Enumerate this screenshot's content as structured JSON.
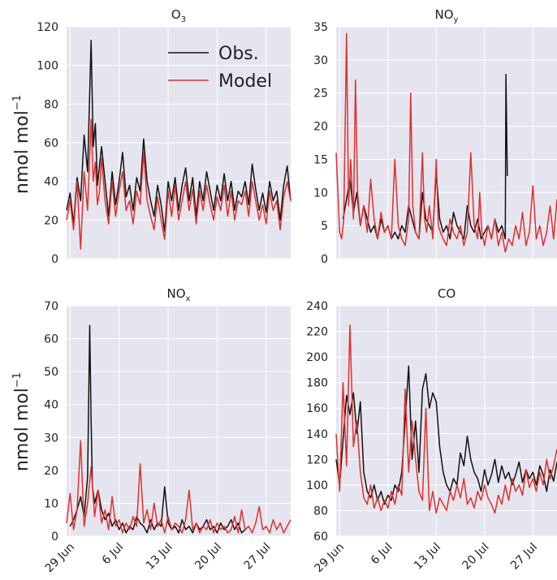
{
  "figure": {
    "ylabel": "nmol mol",
    "ylabel_exponent": "−1",
    "background": "#e5e5f0",
    "grid_color": "#ffffff",
    "obs_color": "#111111",
    "model_color": "#e0302a",
    "x_ticks": [
      {
        "day": 0,
        "label": "29 Jun"
      },
      {
        "day": 7,
        "label": "6 Jul"
      },
      {
        "day": 14,
        "label": "13 Jul"
      },
      {
        "day": 21,
        "label": "20 Jul"
      },
      {
        "day": 28,
        "label": "27 Jul"
      }
    ],
    "legend": {
      "obs": "Obs.",
      "model": "Model"
    }
  },
  "chart_data": [
    {
      "type": "line",
      "title": "O",
      "title_sub": "3",
      "xlim": [
        -0.5,
        31.5
      ],
      "ylim": [
        0,
        120
      ],
      "y_ticks": [
        0,
        20,
        40,
        60,
        80,
        100,
        120
      ],
      "show_legend": true,
      "series": [
        {
          "name": "Obs.",
          "x": [
            -0.5,
            0,
            0.5,
            1,
            1.5,
            2,
            2.5,
            3,
            3.3,
            3.6,
            3.9,
            4.2,
            4.5,
            5,
            5.5,
            6,
            6.5,
            7,
            7.5,
            8,
            8.5,
            9,
            9.5,
            10,
            10.5,
            11,
            11.5,
            12,
            12.5,
            13,
            13.5,
            14,
            14.5,
            15,
            15.5,
            16,
            16.5,
            17,
            17.5,
            18,
            18.5,
            19,
            19.5,
            20,
            20.5,
            21,
            21.5,
            22,
            22.5,
            23,
            23.5,
            24,
            24.5,
            25,
            25.5,
            26,
            26.5,
            27,
            27.5,
            28,
            28.5,
            29,
            29.5,
            30,
            30.5,
            31,
            31.5
          ],
          "y": [
            25,
            34,
            18,
            42,
            30,
            64,
            45,
            113,
            58,
            70,
            38,
            48,
            58,
            40,
            22,
            45,
            28,
            40,
            55,
            32,
            38,
            25,
            42,
            35,
            62,
            40,
            30,
            22,
            38,
            28,
            14,
            40,
            30,
            42,
            25,
            38,
            47,
            30,
            42,
            22,
            40,
            30,
            45,
            35,
            25,
            38,
            30,
            44,
            30,
            40,
            25,
            35,
            32,
            40,
            28,
            49,
            36,
            25,
            34,
            24,
            40,
            30,
            35,
            20,
            38,
            48,
            30
          ]
        },
        {
          "name": "Model",
          "x": [
            -0.5,
            0,
            0.5,
            1,
            1.5,
            2,
            2.5,
            3,
            3.3,
            3.6,
            3.9,
            4.2,
            4.5,
            5,
            5.5,
            6,
            6.5,
            7,
            7.5,
            8,
            8.5,
            9,
            9.5,
            10,
            10.5,
            11,
            11.5,
            12,
            12.5,
            13,
            13.5,
            14,
            14.5,
            15,
            15.5,
            16,
            16.5,
            17,
            17.5,
            18,
            18.5,
            19,
            19.5,
            20,
            20.5,
            21,
            21.5,
            22,
            22.5,
            23,
            23.5,
            24,
            24.5,
            25,
            25.5,
            26,
            26.5,
            27,
            27.5,
            28,
            28.5,
            29,
            29.5,
            30,
            30.5,
            31,
            31.5
          ],
          "y": [
            20,
            30,
            15,
            40,
            5,
            45,
            25,
            72,
            40,
            50,
            28,
            35,
            52,
            30,
            18,
            40,
            22,
            35,
            45,
            25,
            30,
            18,
            35,
            28,
            55,
            30,
            22,
            15,
            32,
            20,
            10,
            35,
            22,
            38,
            20,
            30,
            40,
            25,
            36,
            18,
            35,
            25,
            38,
            28,
            20,
            32,
            25,
            38,
            22,
            35,
            20,
            30,
            28,
            35,
            22,
            40,
            30,
            20,
            28,
            18,
            35,
            25,
            30,
            15,
            32,
            40,
            30
          ]
        }
      ]
    },
    {
      "type": "line",
      "title": "NO",
      "title_sub": "y",
      "xlim": [
        -0.5,
        31.5
      ],
      "ylim": [
        0,
        35
      ],
      "y_ticks": [
        0,
        5,
        10,
        15,
        20,
        25,
        30,
        35
      ],
      "show_legend": false,
      "series": [
        {
          "name": "Obs.",
          "x": [
            0.5,
            1,
            1.5,
            2,
            2.5,
            3,
            3.5,
            4,
            4.5,
            5,
            5.5,
            6,
            6.5,
            7,
            7.5,
            8,
            8.5,
            9,
            9.5,
            10,
            10.5,
            11,
            11.5,
            12,
            12.5,
            13,
            13.5,
            14,
            14.5,
            15,
            15.5,
            16,
            16.5,
            17,
            17.5,
            18,
            18.5,
            19,
            19.5,
            20,
            20.5,
            21,
            21.5,
            22,
            22.5,
            23,
            23.5,
            24,
            24.1,
            24.3
          ],
          "y": [
            6,
            9,
            12,
            7,
            10,
            5,
            8,
            6,
            4,
            5,
            3,
            6,
            4,
            5,
            3,
            4,
            3,
            5,
            4,
            8,
            6,
            4,
            3,
            10,
            6,
            5,
            4,
            13,
            6,
            4,
            5,
            3,
            7,
            5,
            4,
            3,
            8,
            5,
            4,
            6,
            3,
            4,
            5,
            3,
            6,
            4,
            5,
            3,
            27.8,
            12.5
          ]
        },
        {
          "name": "Model",
          "x": [
            -0.5,
            0,
            0.3,
            0.6,
            1,
            1.3,
            1.6,
            2,
            2.3,
            2.6,
            3,
            3.5,
            4,
            4.5,
            5,
            5.5,
            6,
            6.5,
            7,
            7.5,
            8,
            8.5,
            9,
            9.5,
            10,
            10.3,
            10.6,
            11,
            11.5,
            12,
            12.3,
            12.6,
            13,
            13.5,
            14,
            14.3,
            14.6,
            15,
            15.5,
            16,
            16.5,
            17,
            17.5,
            18,
            18.5,
            19,
            19.5,
            20,
            20.3,
            20.6,
            21,
            21.5,
            22,
            22.5,
            23,
            23.5,
            24,
            24.5,
            25,
            25.5,
            26,
            26.5,
            27,
            27.5,
            28,
            28.5,
            29,
            29.5,
            30,
            30.5,
            31,
            31.5
          ],
          "y": [
            16,
            4,
            3,
            6,
            34,
            8,
            15,
            6,
            27,
            10,
            5,
            8,
            4,
            12,
            6,
            3,
            7,
            4,
            5,
            3,
            15,
            5,
            3,
            2,
            6,
            25,
            8,
            4,
            3,
            16,
            6,
            4,
            8,
            3,
            15,
            5,
            4,
            3,
            2,
            6,
            4,
            3,
            5,
            2,
            4,
            16,
            5,
            3,
            10,
            4,
            2,
            5,
            3,
            6,
            2,
            4,
            1,
            3,
            2,
            5,
            3,
            7,
            2,
            4,
            11,
            3,
            5,
            2,
            4,
            8,
            3,
            9
          ]
        }
      ]
    },
    {
      "type": "line",
      "title": "NO",
      "title_sub": "x",
      "xlim": [
        -0.5,
        31.5
      ],
      "ylim": [
        0,
        70
      ],
      "y_ticks": [
        0,
        10,
        20,
        30,
        40,
        50,
        60,
        70
      ],
      "show_legend": false,
      "series": [
        {
          "name": "Obs.",
          "x": [
            0,
            0.5,
            1,
            1.5,
            2,
            2.5,
            2.8,
            3,
            3.2,
            3.5,
            4,
            4.5,
            5,
            5.5,
            6,
            6.5,
            7,
            7.5,
            8,
            8.5,
            9,
            9.5,
            10,
            10.5,
            11,
            11.5,
            12,
            12.5,
            13,
            13.5,
            14,
            14.5,
            15,
            15.5,
            16,
            16.5,
            17,
            17.5,
            18,
            18.5,
            19,
            19.5,
            20,
            20.5,
            21,
            21.5,
            22,
            22.5,
            23,
            23.5,
            24,
            24.5,
            25
          ],
          "y": [
            3,
            5,
            8,
            12,
            6,
            18,
            64,
            35,
            15,
            10,
            14,
            8,
            5,
            7,
            3,
            5,
            2,
            4,
            1,
            3,
            2,
            6,
            4,
            3,
            1,
            5,
            2,
            4,
            3,
            15,
            4,
            2,
            3,
            1,
            5,
            2,
            3,
            1,
            4,
            2,
            3,
            5,
            2,
            3,
            1,
            4,
            2,
            3,
            5,
            2,
            4,
            1,
            2
          ]
        },
        {
          "name": "Model",
          "x": [
            -0.5,
            0,
            0.5,
            1,
            1.5,
            2,
            2.5,
            3,
            3.5,
            4,
            4.5,
            5,
            5.5,
            6,
            6.5,
            7,
            7.5,
            8,
            8.5,
            9,
            9.5,
            10,
            10.5,
            11,
            11.5,
            12,
            12.5,
            13,
            13.5,
            14,
            14.5,
            15,
            15.5,
            16,
            16.5,
            17,
            17.5,
            18,
            18.5,
            19,
            19.5,
            20,
            20.5,
            21,
            21.5,
            22,
            22.5,
            23,
            23.5,
            24,
            24.5,
            25,
            25.5,
            26,
            26.5,
            27,
            27.5,
            28,
            28.5,
            29,
            29.5,
            30,
            30.5,
            31,
            31.5
          ],
          "y": [
            4,
            13,
            2,
            8,
            29,
            3,
            10,
            21,
            6,
            14,
            4,
            8,
            2,
            12,
            3,
            5,
            1,
            4,
            2,
            6,
            3,
            22,
            4,
            8,
            2,
            10,
            3,
            5,
            1,
            6,
            2,
            4,
            3,
            1,
            5,
            14,
            2,
            4,
            1,
            3,
            2,
            5,
            1,
            4,
            2,
            3,
            1,
            2,
            6,
            1,
            8,
            2,
            3,
            1,
            4,
            9,
            2,
            3,
            1,
            5,
            2,
            4,
            1,
            3,
            5
          ]
        }
      ]
    },
    {
      "type": "line",
      "title": "CO",
      "title_sub": "",
      "xlim": [
        -0.5,
        31.5
      ],
      "ylim": [
        60,
        240
      ],
      "y_ticks": [
        60,
        80,
        100,
        120,
        140,
        160,
        180,
        200,
        220,
        240
      ],
      "show_legend": false,
      "series": [
        {
          "name": "Obs.",
          "x": [
            -0.5,
            0,
            0.5,
            1,
            1.5,
            2,
            2.5,
            3,
            3.5,
            4,
            4.5,
            5,
            5.5,
            6,
            6.5,
            7,
            7.5,
            8,
            8.5,
            9,
            9.5,
            10,
            10.5,
            11,
            11.5,
            12,
            12.5,
            13,
            13.5,
            14,
            14.5,
            15,
            15.5,
            16,
            16.5,
            17,
            17.5,
            18,
            18.5,
            19,
            19.5,
            20,
            20.5,
            21,
            21.5,
            22,
            22.5,
            23,
            23.5,
            24,
            24.5,
            25,
            25.5,
            26,
            26.5,
            27,
            27.5,
            28,
            28.5,
            29,
            29.5,
            30,
            30.5,
            31,
            31.5
          ],
          "y": [
            120,
            100,
            135,
            170,
            155,
            172,
            140,
            165,
            110,
            95,
            90,
            100,
            88,
            95,
            85,
            92,
            88,
            100,
            95,
            110,
            150,
            193,
            120,
            150,
            110,
            175,
            187,
            160,
            172,
            165,
            130,
            110,
            100,
            95,
            105,
            100,
            125,
            115,
            138,
            120,
            110,
            105,
            95,
            112,
            100,
            108,
            120,
            102,
            115,
            105,
            110,
            100,
            108,
            118,
            102,
            112,
            105,
            110,
            100,
            115,
            108,
            95,
            112,
            103,
            118
          ]
        },
        {
          "name": "Model",
          "x": [
            -0.5,
            0,
            0.5,
            1,
            1.5,
            2,
            2.5,
            3,
            3.5,
            4,
            4.5,
            5,
            5.5,
            6,
            6.5,
            7,
            7.5,
            8,
            8.5,
            9,
            9.5,
            10,
            10.5,
            11,
            11.5,
            12,
            12.5,
            13,
            13.5,
            14,
            14.5,
            15,
            15.5,
            16,
            16.5,
            17,
            17.5,
            18,
            18.5,
            19,
            19.5,
            20,
            20.5,
            21,
            21.5,
            22,
            22.5,
            23,
            23.5,
            24,
            24.5,
            25,
            25.5,
            26,
            26.5,
            27,
            27.5,
            28,
            28.5,
            29,
            29.5,
            30,
            30.5,
            31,
            31.5
          ],
          "y": [
            140,
            95,
            180,
            115,
            225,
            130,
            150,
            110,
            90,
            85,
            100,
            82,
            90,
            80,
            88,
            82,
            95,
            85,
            100,
            92,
            175,
            110,
            150,
            120,
            95,
            88,
            160,
            80,
            95,
            78,
            90,
            85,
            80,
            95,
            88,
            100,
            90,
            105,
            85,
            90,
            82,
            95,
            88,
            100,
            90,
            85,
            78,
            92,
            85,
            100,
            88,
            105,
            95,
            100,
            92,
            112,
            98,
            105,
            95,
            110,
            100,
            120,
            105,
            115,
            128
          ]
        }
      ]
    }
  ]
}
